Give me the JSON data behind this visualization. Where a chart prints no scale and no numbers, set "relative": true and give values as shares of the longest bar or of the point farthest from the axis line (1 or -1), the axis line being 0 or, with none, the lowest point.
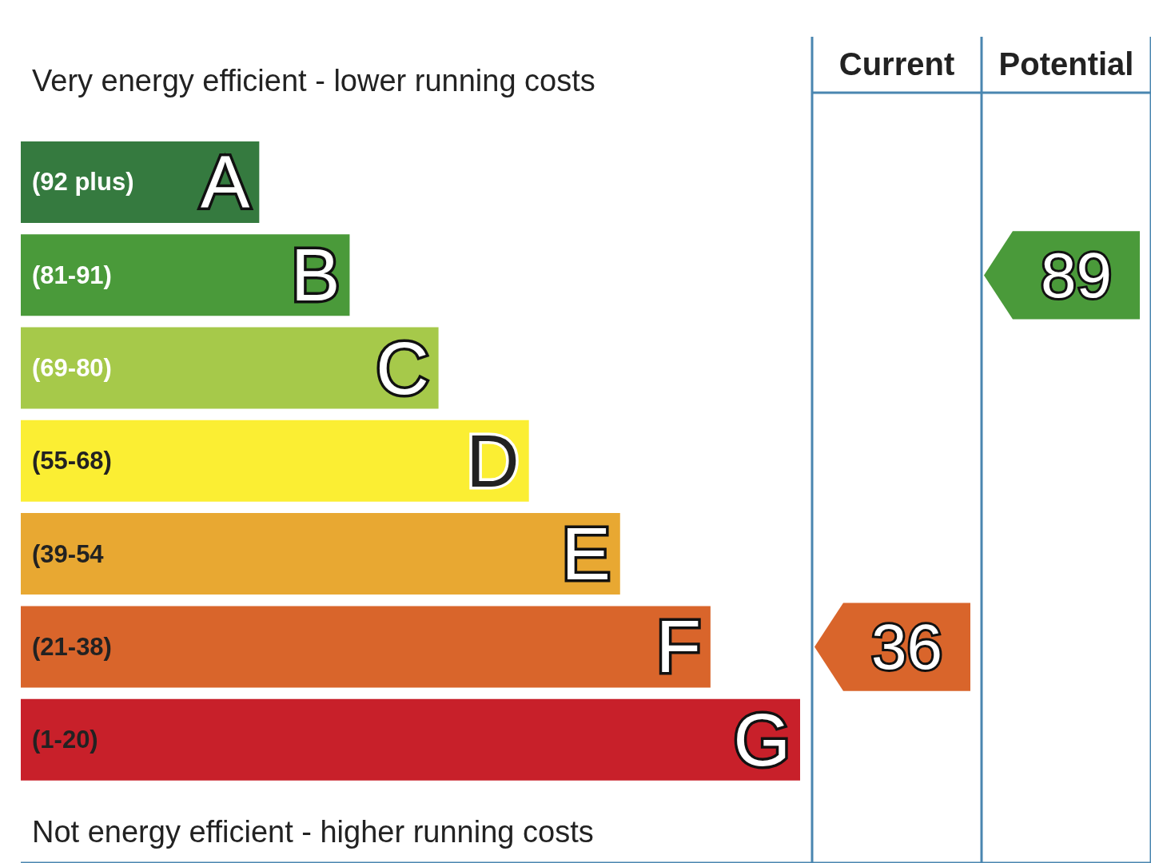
{
  "chart_data": {
    "type": "bar",
    "orientation": "horizontal",
    "relative": true,
    "title": "Very energy efficient - lower running costs",
    "categories": [
      "A",
      "B",
      "C",
      "D",
      "E",
      "F",
      "G"
    ],
    "values": [
      0.306,
      0.422,
      0.536,
      0.652,
      0.769,
      0.885,
      1
    ],
    "colors": [
      "#357a3f",
      "#4a9a3a",
      "#a6c94a",
      "#fbee33",
      "#e8a832",
      "#d9652b",
      "#c8202a"
    ],
    "annotations": [
      "(92 plus)",
      "(81-91)",
      "(69-80)",
      "(55-68)",
      "(39-54",
      "(21-38)",
      "(1-20)",
      "Current",
      "Potential",
      "36",
      "89",
      "Not energy efficient - higher running costs"
    ]
  }
}
